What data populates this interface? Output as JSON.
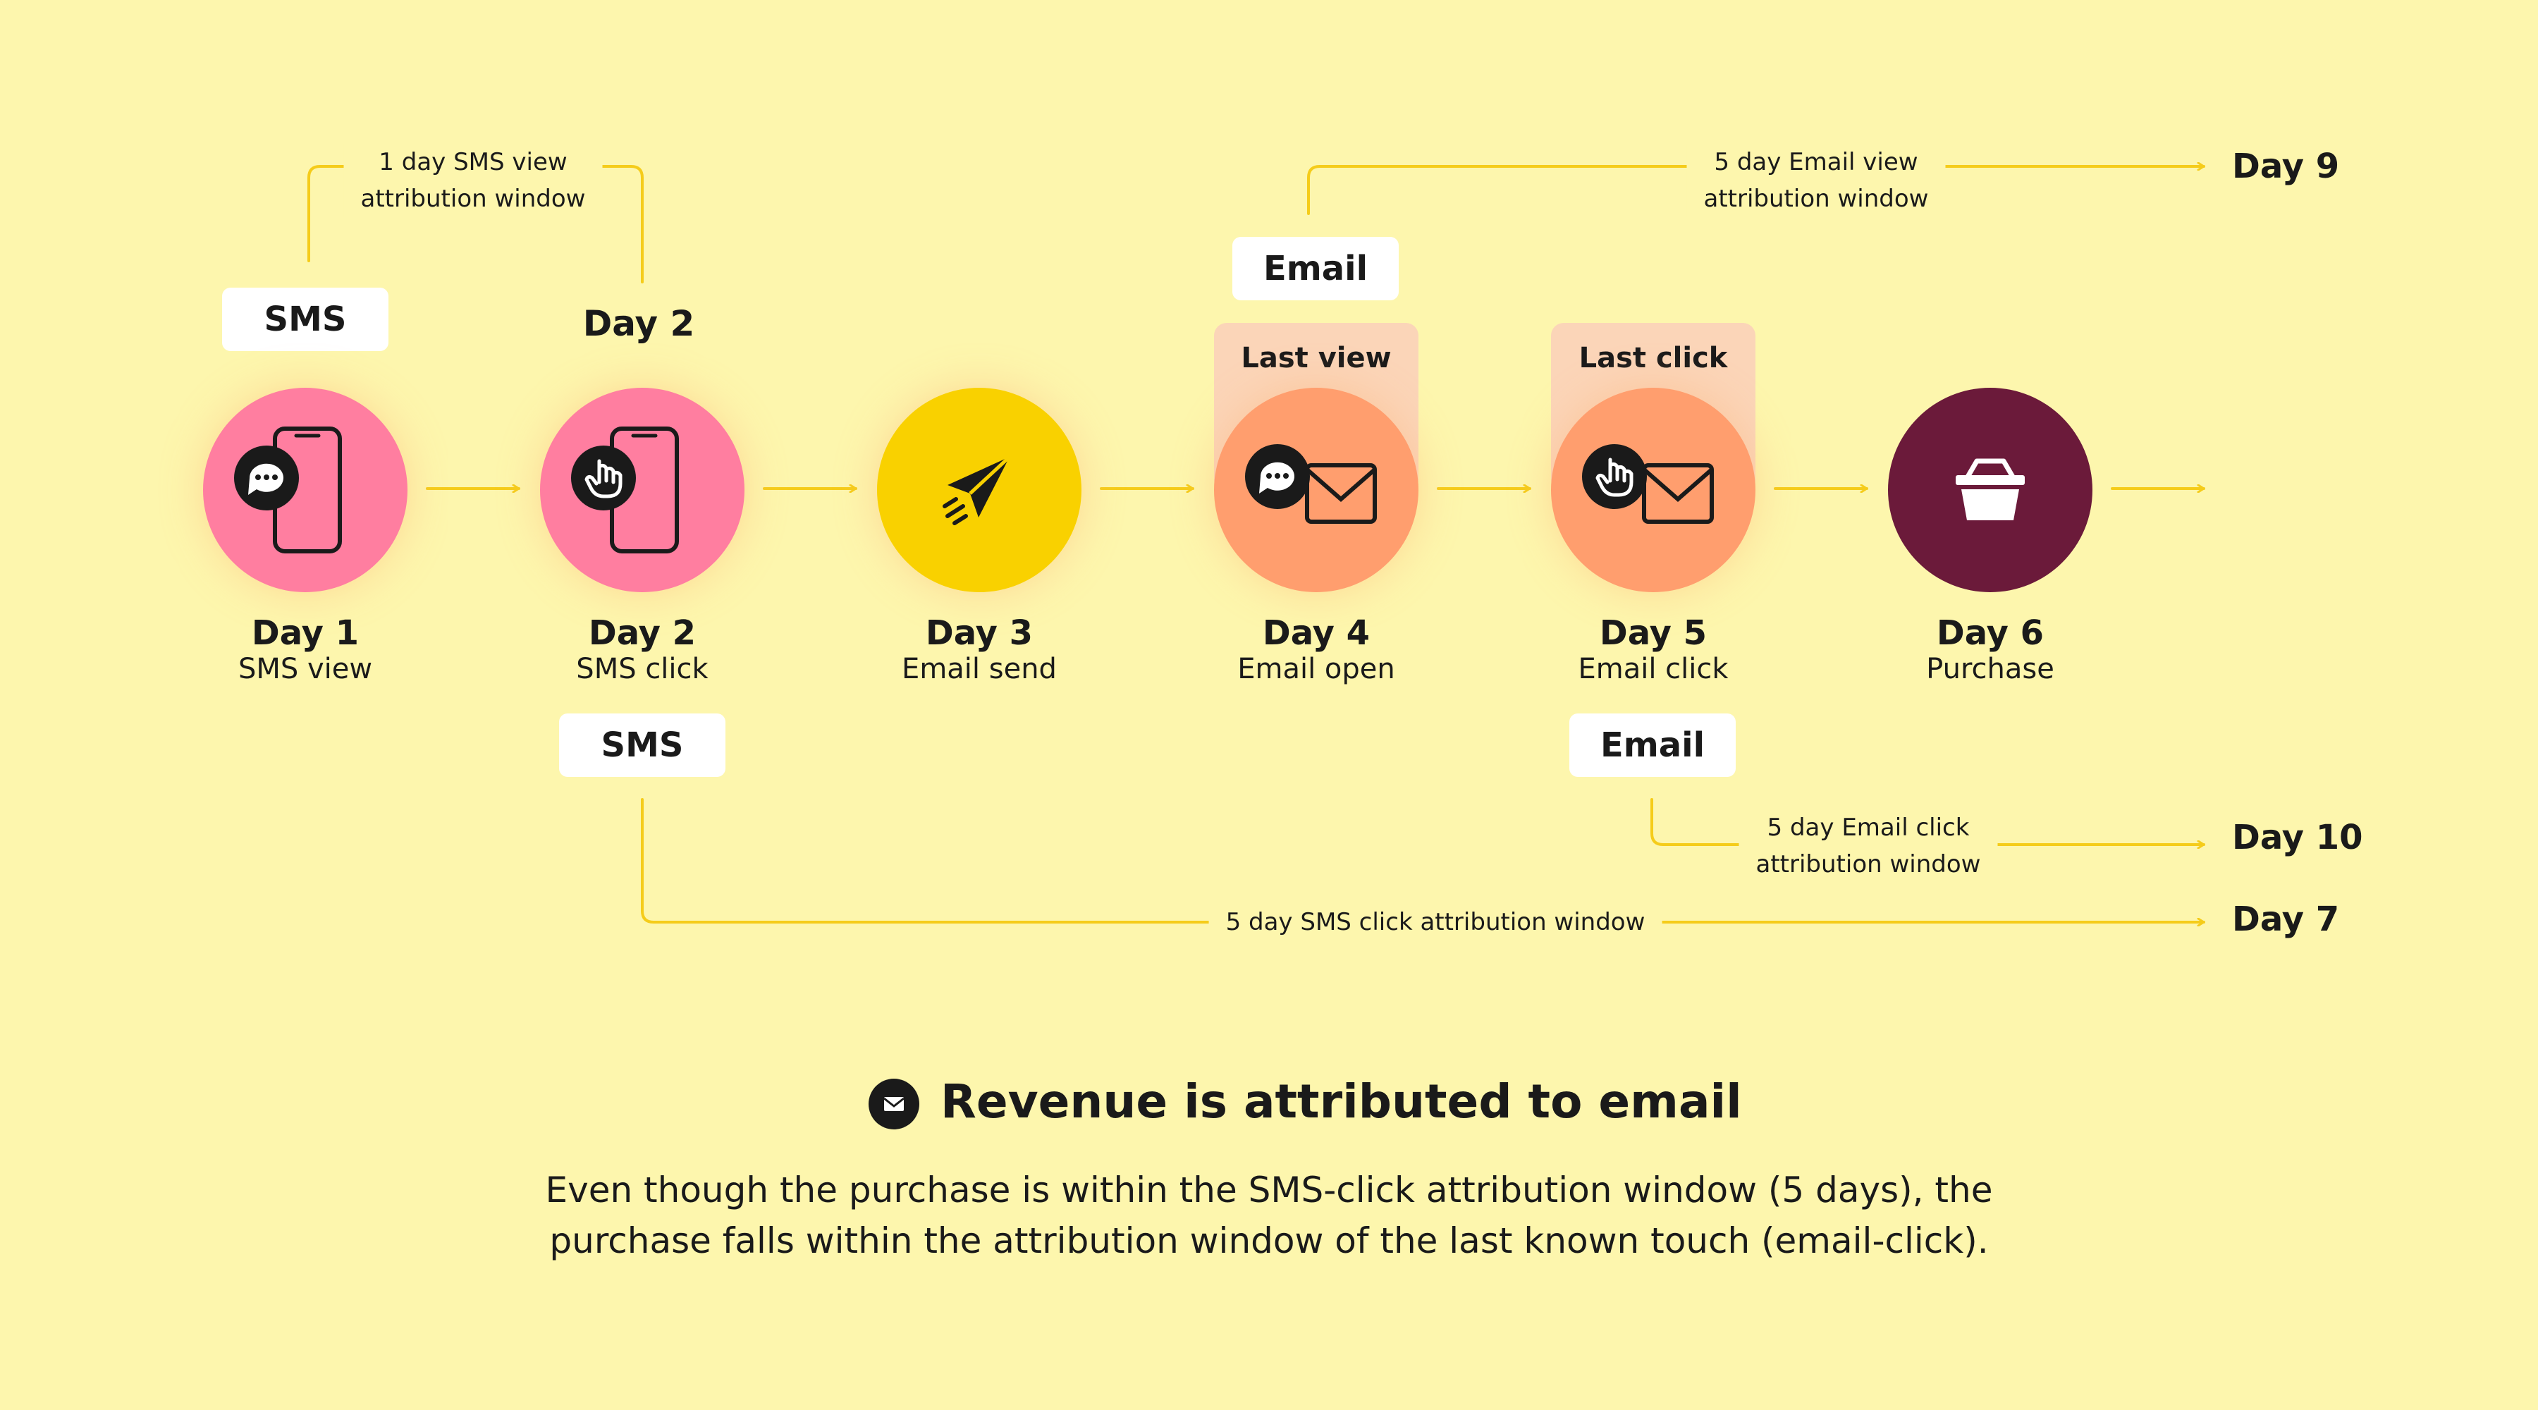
{
  "nodes": [
    {
      "day": "Day 1",
      "label": "SMS view",
      "color": "#ff7ea0",
      "icon": "phone-chat-icon"
    },
    {
      "day": "Day 2",
      "label": "SMS click",
      "color": "#ff7ea0",
      "icon": "phone-tap-icon"
    },
    {
      "day": "Day 3",
      "label": "Email send",
      "color": "#f9d100",
      "icon": "paper-plane-icon"
    },
    {
      "day": "Day 4",
      "label": "Email open",
      "color": "#ff9e6e",
      "icon": "envelope-chat-icon"
    },
    {
      "day": "Day 5",
      "label": "Email click",
      "color": "#ff9e6e",
      "icon": "envelope-tap-icon"
    },
    {
      "day": "Day 6",
      "label": "Purchase",
      "color": "#6b1a3a",
      "icon": "basket-icon"
    }
  ],
  "tags": {
    "sms_top": "SMS",
    "day2_top": "Day 2",
    "email_top": "Email",
    "sms_bottom": "SMS",
    "email_bottom": "Email"
  },
  "halos": {
    "last_view": "Last view",
    "last_click": "Last click"
  },
  "windows": {
    "sms_view": [
      "1 day SMS view",
      "attribution window"
    ],
    "email_view": [
      "5 day Email view",
      "attribution window"
    ],
    "email_click": [
      "5 day Email click",
      "attribution window"
    ],
    "sms_click": "5 day SMS click attribution window"
  },
  "end_days": {
    "email_view": "Day 9",
    "email_click": "Day 10",
    "sms_click": "Day 7"
  },
  "summary": {
    "headline": "Revenue is attributed to email",
    "body_line1": "Even though the purchase is within the SMS-click attribution window (5 days), the",
    "body_line2": "purchase falls within the attribution window of the last known touch (email-click)."
  },
  "colors": {
    "background": "#fdf6ad",
    "connector": "#f5cc1a",
    "sms_node": "#ff7ea0",
    "email_send_node": "#f9d100",
    "email_node": "#ff9e6e",
    "purchase_node": "#6b1a3a",
    "highlight": "#fbd5b8"
  }
}
